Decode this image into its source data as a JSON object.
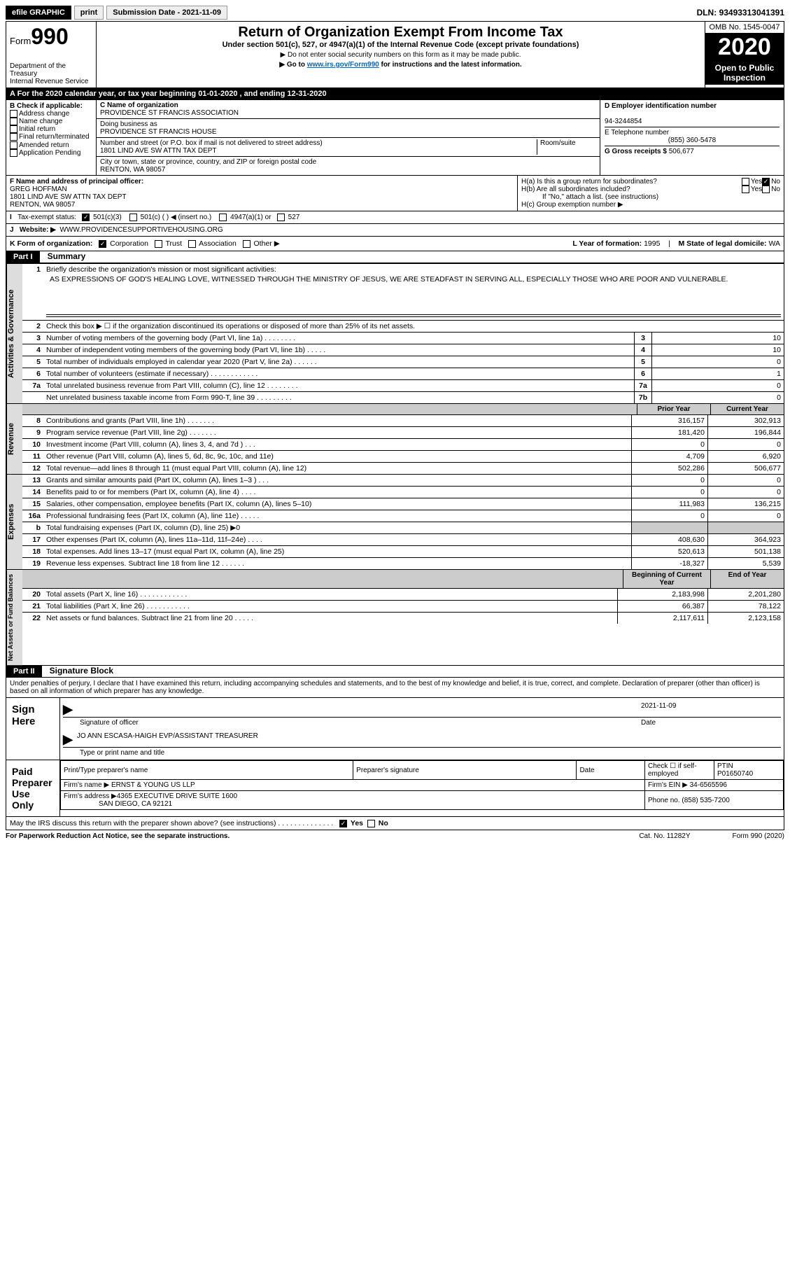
{
  "topbar": {
    "efile": "efile GRAPHIC",
    "print": "print",
    "sub_label": "Submission Date - ",
    "sub_date": "2021-11-09",
    "dln_label": "DLN: ",
    "dln": "93493313041391"
  },
  "hdr": {
    "form": "Form",
    "num": "990",
    "dept": "Department of the Treasury\nInternal Revenue Service",
    "title": "Return of Organization Exempt From Income Tax",
    "sub1": "Under section 501(c), 527, or 4947(a)(1) of the Internal Revenue Code (except private foundations)",
    "sub2": "▶ Do not enter social security numbers on this form as it may be made public.",
    "sub3a": "▶ Go to ",
    "sub3_link": "www.irs.gov/Form990",
    "sub3b": " for instructions and the latest information.",
    "omb": "OMB No. 1545-0047",
    "year": "2020",
    "insp": "Open to Public Inspection"
  },
  "taxyr": "A For the 2020 calendar year, or tax year beginning 01-01-2020   , and ending 12-31-2020",
  "boxB": {
    "hdr": "B Check if applicable:",
    "i": [
      "Address change",
      "Name change",
      "Initial return",
      "Final return/terminated",
      "Amended return",
      "Application Pending"
    ]
  },
  "boxC": {
    "lbl": "C Name of organization",
    "name": "PROVIDENCE ST FRANCIS ASSOCIATION",
    "dba_lbl": "Doing business as",
    "dba": "PROVIDENCE ST FRANCIS HOUSE",
    "addr_lbl": "Number and street (or P.O. box if mail is not delivered to street address)",
    "room": "Room/suite",
    "addr": "1801 LIND AVE SW ATTN TAX DEPT",
    "city_lbl": "City or town, state or province, country, and ZIP or foreign postal code",
    "city": "RENTON, WA  98057"
  },
  "boxD": {
    "lbl": "D Employer identification number",
    "ein": "94-3244854"
  },
  "boxE": {
    "lbl": "E Telephone number",
    "tel": "(855) 360-5478"
  },
  "boxG": {
    "lbl": "G Gross receipts $",
    "amt": "506,677"
  },
  "boxF": {
    "lbl": "F Name and address of principal officer:",
    "name": "GREG HOFFMAN",
    "addr1": "1801 LIND AVE SW ATTN TAX DEPT",
    "addr2": "RENTON, WA  98057"
  },
  "boxH": {
    "a": "H(a)  Is this a group return for subordinates?",
    "b": "H(b)  Are all subordinates included?",
    "note": "If \"No,\" attach a list. (see instructions)",
    "c": "H(c)  Group exemption number ▶",
    "yes": "Yes",
    "no": "No"
  },
  "boxI": {
    "lbl": "Tax-exempt status:",
    "o1": "501(c)(3)",
    "o2": "501(c) (   ) ◀ (insert no.)",
    "o3": "4947(a)(1) or",
    "o4": "527"
  },
  "boxJ": {
    "lbl": "Website: ▶",
    "url": "WWW.PROVIDENCESUPPORTIVEHOUSING.ORG"
  },
  "boxK": {
    "lbl": "K Form of organization:",
    "o": [
      "Corporation",
      "Trust",
      "Association",
      "Other ▶"
    ],
    "l_lbl": "L Year of formation: ",
    "l": "1995",
    "m_lbl": "M State of legal domicile: ",
    "m": "WA"
  },
  "partI": {
    "tab": "Part I",
    "title": "Summary",
    "q1": "Briefly describe the organization's mission or most significant activities:",
    "mission": "AS EXPRESSIONS OF GOD'S HEALING LOVE, WITNESSED THROUGH THE MINISTRY OF JESUS, WE ARE STEADFAST IN SERVING ALL, ESPECIALLY THOSE WHO ARE POOR AND VULNERABLE.",
    "q2": "Check this box ▶ ☐  if the organization discontinued its operations or disposed of more than 25% of its net assets.",
    "gov_rows": [
      {
        "n": "3",
        "d": "Number of voting members of the governing body (Part VI, line 1a)   .    .    .    .    .    .    .    .",
        "k": "3",
        "v": "10"
      },
      {
        "n": "4",
        "d": "Number of independent voting members of the governing body (Part VI, line 1b)   .    .    .    .    .",
        "k": "4",
        "v": "10"
      },
      {
        "n": "5",
        "d": "Total number of individuals employed in calendar year 2020 (Part V, line 2a)   .    .    .    .    .    .",
        "k": "5",
        "v": "0"
      },
      {
        "n": "6",
        "d": "Total number of volunteers (estimate if necessary)   .    .    .    .    .    .    .    .    .    .    .    .",
        "k": "6",
        "v": "1"
      },
      {
        "n": "7a",
        "d": "Total unrelated business revenue from Part VIII, column (C), line 12   .    .    .    .    .    .    .    .",
        "k": "7a",
        "v": "0"
      },
      {
        "n": "",
        "d": "Net unrelated business taxable income from Form 990-T, line 39   .    .    .    .    .    .    .    .    .",
        "k": "7b",
        "v": "0"
      }
    ],
    "py": "Prior Year",
    "cy": "Current Year",
    "rev_rows": [
      {
        "n": "8",
        "d": "Contributions and grants (Part VIII, line 1h)   .    .    .    .    .    .    .",
        "p": "316,157",
        "c": "302,913"
      },
      {
        "n": "9",
        "d": "Program service revenue (Part VIII, line 2g)   .    .    .    .    .    .    .",
        "p": "181,420",
        "c": "196,844"
      },
      {
        "n": "10",
        "d": "Investment income (Part VIII, column (A), lines 3, 4, and 7d )   .    .    .",
        "p": "0",
        "c": "0"
      },
      {
        "n": "11",
        "d": "Other revenue (Part VIII, column (A), lines 5, 6d, 8c, 9c, 10c, and 11e)",
        "p": "4,709",
        "c": "6,920"
      },
      {
        "n": "12",
        "d": "Total revenue—add lines 8 through 11 (must equal Part VIII, column (A), line 12)",
        "p": "502,286",
        "c": "506,677"
      }
    ],
    "exp_rows": [
      {
        "n": "13",
        "d": "Grants and similar amounts paid (Part IX, column (A), lines 1–3 )   .    .    .",
        "p": "0",
        "c": "0"
      },
      {
        "n": "14",
        "d": "Benefits paid to or for members (Part IX, column (A), line 4)   .    .    .    .",
        "p": "0",
        "c": "0"
      },
      {
        "n": "15",
        "d": "Salaries, other compensation, employee benefits (Part IX, column (A), lines 5–10)",
        "p": "111,983",
        "c": "136,215"
      },
      {
        "n": "16a",
        "d": "Professional fundraising fees (Part IX, column (A), line 11e)   .    .    .    .    .",
        "p": "0",
        "c": "0"
      },
      {
        "n": "b",
        "d": "Total fundraising expenses (Part IX, column (D), line 25) ▶0",
        "p": "",
        "c": "",
        "grey": true
      },
      {
        "n": "17",
        "d": "Other expenses (Part IX, column (A), lines 11a–11d, 11f–24e)   .    .    .    .",
        "p": "408,630",
        "c": "364,923"
      },
      {
        "n": "18",
        "d": "Total expenses. Add lines 13–17 (must equal Part IX, column (A), line 25)",
        "p": "520,613",
        "c": "501,138"
      },
      {
        "n": "19",
        "d": "Revenue less expenses. Subtract line 18 from line 12   .    .    .    .    .    .",
        "p": "-18,327",
        "c": "5,539"
      }
    ],
    "by": "Beginning of Current Year",
    "ey": "End of Year",
    "na_rows": [
      {
        "n": "20",
        "d": "Total assets (Part X, line 16)   .    .    .    .    .    .    .    .    .    .    .    .",
        "p": "2,183,998",
        "c": "2,201,280"
      },
      {
        "n": "21",
        "d": "Total liabilities (Part X, line 26)   .    .    .    .    .    .    .    .    .    .    .",
        "p": "66,387",
        "c": "78,122"
      },
      {
        "n": "22",
        "d": "Net assets or fund balances. Subtract line 21 from line 20   .    .    .    .    .",
        "p": "2,117,611",
        "c": "2,123,158"
      }
    ],
    "vt_gov": "Activities & Governance",
    "vt_rev": "Revenue",
    "vt_exp": "Expenses",
    "vt_na": "Net Assets or Fund Balances"
  },
  "partII": {
    "tab": "Part II",
    "title": "Signature Block",
    "decl": "Under penalties of perjury, I declare that I have examined this return, including accompanying schedules and statements, and to the best of my knowledge and belief, it is true, correct, and complete. Declaration of preparer (other than officer) is based on all information of which preparer has any knowledge.",
    "sign": "Sign Here",
    "sig_of": "Signature of officer",
    "date": "Date",
    "sig_date": "2021-11-09",
    "name": "JO ANN ESCASA-HAIGH  EVP/ASSISTANT TREASURER",
    "name_lbl": "Type or print name and title",
    "paid": "Paid Preparer Use Only",
    "pt_name": "Print/Type preparer's name",
    "pt_sig": "Preparer's signature",
    "pt_date": "Date",
    "pt_chk": "Check ☐ if self-employed",
    "ptin_lbl": "PTIN",
    "ptin": "P01650740",
    "firm_lbl": "Firm's name   ▶",
    "firm": "ERNST & YOUNG US LLP",
    "fein_lbl": "Firm's EIN ▶",
    "fein": "34-6565596",
    "faddr_lbl": "Firm's address ▶",
    "faddr1": "4365 EXECUTIVE DRIVE SUITE 1600",
    "faddr2": "SAN DIEGO, CA  92121",
    "fphone_lbl": "Phone no.",
    "fphone": "(858) 535-7200",
    "may": "May the IRS discuss this return with the preparer shown above? (see instructions)   .    .    .    .    .    .    .    .    .    .    .    .    .    .",
    "yes": "Yes",
    "no": "No"
  },
  "foot": {
    "pra": "For Paperwork Reduction Act Notice, see the separate instructions.",
    "cat": "Cat. No. 11282Y",
    "form": "Form 990 (2020)"
  }
}
